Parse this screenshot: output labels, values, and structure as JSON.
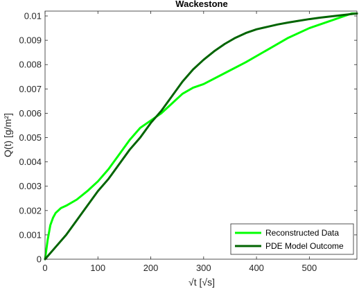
{
  "chart_data": {
    "type": "line",
    "title": "Wackestone",
    "xlabel": "√t [√s]",
    "ylabel": "Q(t) [g/m²]",
    "xlim": [
      0,
      590
    ],
    "ylim": [
      0,
      0.0102
    ],
    "xticks": [
      0,
      100,
      200,
      300,
      400,
      500
    ],
    "xtick_labels": [
      "0",
      "100",
      "200",
      "300",
      "400",
      "500"
    ],
    "yticks": [
      0,
      0.001,
      0.002,
      0.003,
      0.004,
      0.005,
      0.006,
      0.007,
      0.008,
      0.009,
      0.01
    ],
    "ytick_labels": [
      "0",
      "0.001",
      "0.002",
      "0.003",
      "0.004",
      "0.005",
      "0.006",
      "0.007",
      "0.008",
      "0.009",
      "0.01"
    ],
    "grid": false,
    "legend_position": "bottom-right",
    "series": [
      {
        "name": "Reconstructed Data",
        "color": "#00ff00",
        "x": [
          0,
          5,
          10,
          15,
          20,
          30,
          40,
          60,
          80,
          100,
          120,
          140,
          160,
          180,
          200,
          220,
          240,
          260,
          280,
          300,
          340,
          380,
          420,
          460,
          500,
          540,
          580,
          590
        ],
        "y": [
          0,
          0.0008,
          0.0014,
          0.0017,
          0.0019,
          0.0021,
          0.0022,
          0.00245,
          0.0028,
          0.0032,
          0.0037,
          0.0043,
          0.0049,
          0.0054,
          0.0057,
          0.006,
          0.0064,
          0.0068,
          0.00705,
          0.0072,
          0.00765,
          0.0081,
          0.0086,
          0.0091,
          0.0095,
          0.0098,
          0.0101,
          0.0101
        ]
      },
      {
        "name": "PDE Model Outcome",
        "color": "#006400",
        "x": [
          0,
          20,
          40,
          60,
          80,
          100,
          120,
          140,
          160,
          180,
          200,
          220,
          240,
          260,
          280,
          300,
          320,
          340,
          360,
          380,
          400,
          420,
          440,
          460,
          480,
          500,
          520,
          540,
          560,
          580,
          590
        ],
        "y": [
          0,
          0.0005,
          0.001,
          0.0016,
          0.0022,
          0.0028,
          0.0033,
          0.0039,
          0.0045,
          0.005,
          0.0056,
          0.0061,
          0.0067,
          0.0073,
          0.0078,
          0.0082,
          0.00855,
          0.00885,
          0.0091,
          0.0093,
          0.00945,
          0.00955,
          0.00965,
          0.00973,
          0.0098,
          0.00987,
          0.00993,
          0.00998,
          0.01003,
          0.01008,
          0.0101
        ]
      }
    ]
  }
}
